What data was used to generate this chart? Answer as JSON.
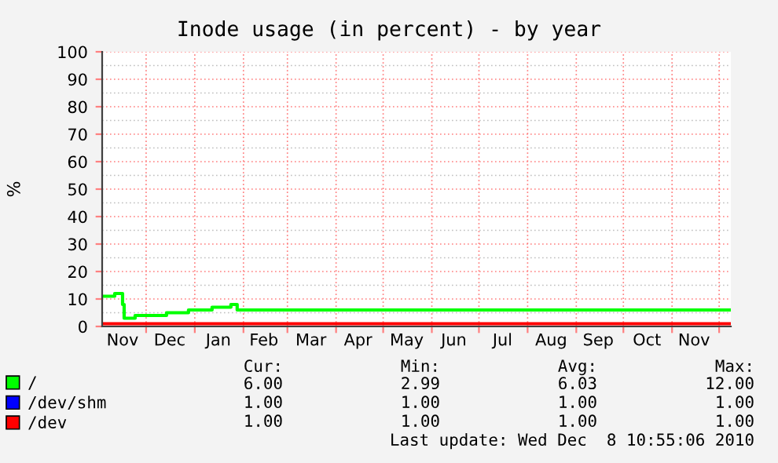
{
  "chart_data": {
    "type": "step",
    "title": "Inode usage (in percent) - by year",
    "ylabel": "%",
    "x": [
      "2009-11-03",
      "2009-11-11",
      "2009-11-16",
      "2009-11-17",
      "2009-11-24",
      "2009-12-14",
      "2009-12-28",
      "2010-01-12",
      "2010-01-24",
      "2010-01-28",
      "2010-09-10",
      "2010-09-12",
      "2010-12-08T10:55"
    ],
    "series": [
      {
        "name": "/",
        "color": "#00ff00",
        "values": [
          11,
          12,
          8,
          3,
          4,
          5,
          6,
          7,
          8,
          6,
          null,
          6,
          6
        ]
      },
      {
        "name": "/dev/shm",
        "color": "#0000ff",
        "values": [
          null,
          null,
          null,
          null,
          null,
          null,
          null,
          null,
          null,
          null,
          null,
          null,
          null
        ]
      },
      {
        "name": "/dev",
        "color": "#ff0000",
        "values": [
          1,
          1,
          1,
          1,
          1,
          1,
          1,
          1,
          1,
          1,
          1,
          1,
          1
        ]
      }
    ],
    "xlim": [
      "2009-11-03",
      "2010-12-08T10:55"
    ],
    "xticks": [
      {
        "value": "2009-12-01",
        "label": null
      },
      {
        "value": "2010-01-01",
        "label": null
      },
      {
        "value": "2010-02-01",
        "label": null
      },
      {
        "value": "2010-03-01",
        "label": null
      },
      {
        "value": "2010-04-01",
        "label": null
      },
      {
        "value": "2010-05-01",
        "label": null
      },
      {
        "value": "2010-06-01",
        "label": null
      },
      {
        "value": "2010-07-01",
        "label": null
      },
      {
        "value": "2010-08-01",
        "label": null
      },
      {
        "value": "2010-09-01",
        "label": null
      },
      {
        "value": "2010-10-01",
        "label": null
      },
      {
        "value": "2010-11-01",
        "label": null
      },
      {
        "value": "2010-12-01",
        "label": null
      },
      {
        "value": "2009-11-16",
        "label": "Nov"
      },
      {
        "value": "2009-12-16",
        "label": "Dec"
      },
      {
        "value": "2010-01-16",
        "label": "Jan"
      },
      {
        "value": "2010-02-14",
        "label": "Feb"
      },
      {
        "value": "2010-03-16",
        "label": "Mar"
      },
      {
        "value": "2010-04-15",
        "label": "Apr"
      },
      {
        "value": "2010-05-16",
        "label": "May"
      },
      {
        "value": "2010-06-15",
        "label": "Jun"
      },
      {
        "value": "2010-07-16",
        "label": "Jul"
      },
      {
        "value": "2010-08-16",
        "label": "Aug"
      },
      {
        "value": "2010-09-15",
        "label": "Sep"
      },
      {
        "value": "2010-10-16",
        "label": "Oct"
      },
      {
        "value": "2010-11-15",
        "label": "Nov"
      }
    ],
    "ylim": [
      0,
      100
    ],
    "yticks": [
      0,
      10,
      20,
      30,
      40,
      50,
      60,
      70,
      80,
      90,
      100
    ],
    "grid": true,
    "legend": "bottom left",
    "annotations": [
      "Cur:",
      "Min:",
      "Avg:",
      "Max:",
      "6.00",
      "2.99",
      "6.03",
      "12.00",
      "1.00",
      "1.00",
      "1.00",
      "1.00",
      "1.00",
      "1.00",
      "1.00",
      "1.00",
      "Last update: Wed Dec  8 10:55:06 2010"
    ]
  }
}
